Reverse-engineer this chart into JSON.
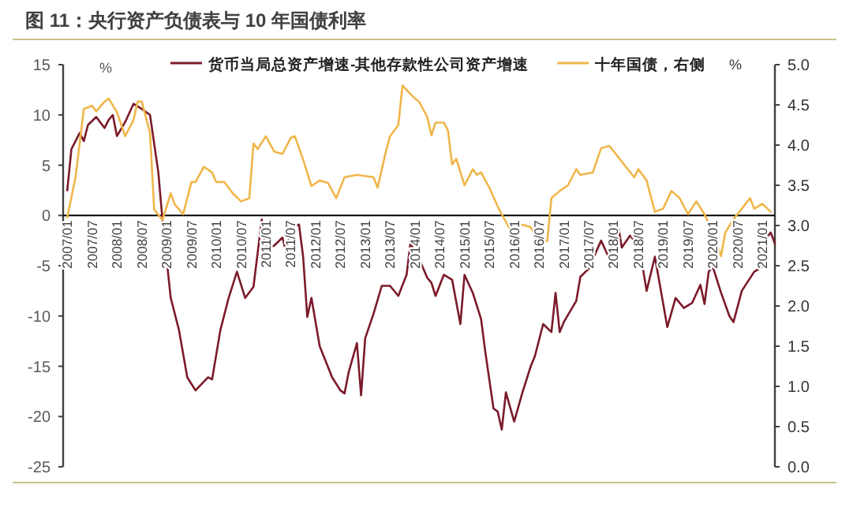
{
  "chart_data": {
    "type": "line",
    "title": "图 11：央行资产负债表与 10 年国债利率",
    "ylabel": "%",
    "y2label": "%",
    "legend": "top",
    "xlim": [
      "2006-12",
      "2021-04"
    ],
    "xticks": [
      {
        "value": "2007-01",
        "label": "2007/01"
      },
      {
        "value": "2007-07",
        "label": "2007/07"
      },
      {
        "value": "2008-01",
        "label": "2008/01"
      },
      {
        "value": "2008-07",
        "label": "2008/07"
      },
      {
        "value": "2009-01",
        "label": "2009/01"
      },
      {
        "value": "2009-07",
        "label": "2009/07"
      },
      {
        "value": "2010-01",
        "label": "2010/01"
      },
      {
        "value": "2010-07",
        "label": "2010/07"
      },
      {
        "value": "2011-01",
        "label": "2011/01"
      },
      {
        "value": "2011-07",
        "label": "2011/07"
      },
      {
        "value": "2012-01",
        "label": "2012/01"
      },
      {
        "value": "2012-07",
        "label": "2012/07"
      },
      {
        "value": "2013-01",
        "label": "2013/01"
      },
      {
        "value": "2013-07",
        "label": "2013/07"
      },
      {
        "value": "2014-01",
        "label": "2014/01"
      },
      {
        "value": "2014-07",
        "label": "2014/07"
      },
      {
        "value": "2015-01",
        "label": "2015/01"
      },
      {
        "value": "2015-07",
        "label": "2015/07"
      },
      {
        "value": "2016-01",
        "label": "2016/01"
      },
      {
        "value": "2016-07",
        "label": "2016/07"
      },
      {
        "value": "2017-01",
        "label": "2017/01"
      },
      {
        "value": "2017-07",
        "label": "2017/07"
      },
      {
        "value": "2018-01",
        "label": "2018/01"
      },
      {
        "value": "2018-07",
        "label": "2018/07"
      },
      {
        "value": "2019-01",
        "label": "2019/01"
      },
      {
        "value": "2019-07",
        "label": "2019/07"
      },
      {
        "value": "2020-01",
        "label": "2020/01"
      },
      {
        "value": "2020-07",
        "label": "2020/07"
      },
      {
        "value": "2021-01",
        "label": "2021/01"
      }
    ],
    "ylim": [
      -25,
      15
    ],
    "yticks": [
      15,
      10,
      5,
      0,
      -5,
      -10,
      -15,
      -20,
      -25
    ],
    "y2lim": [
      0,
      5
    ],
    "y2ticks": [
      {
        "value": 0,
        "label": "0.0"
      },
      0.5,
      {
        "value": 1,
        "label": "1.0"
      },
      1.5,
      {
        "value": 2,
        "label": "2.0"
      },
      2.5,
      {
        "value": 3,
        "label": "3.0"
      },
      3.5,
      {
        "value": 4,
        "label": "4.0"
      },
      4.5,
      {
        "value": 5,
        "label": "5.0"
      }
    ],
    "series": [
      {
        "name": "货币当局总资产增速-其他存款性公司资产增速",
        "color": "#7b1a2a",
        "x": [
          "2007-01",
          "2007-02",
          "2007-04",
          "2007-05",
          "2007-06",
          "2007-08",
          "2007-10",
          "2007-11",
          "2007-12",
          "2008-01",
          "2008-03",
          "2008-05",
          "2008-07",
          "2008-09",
          "2008-11",
          "2008-12",
          "2009-02",
          "2009-04",
          "2009-06",
          "2009-08",
          "2009-11",
          "2009-12",
          "2010-02",
          "2010-04",
          "2010-06",
          "2010-08",
          "2010-10",
          "2010-12",
          "2011-01",
          "2011-03",
          "2011-05",
          "2011-06",
          "2011-07",
          "2011-09",
          "2011-10",
          "2011-11",
          "2011-12",
          "2012-02",
          "2012-05",
          "2012-07",
          "2012-08",
          "2012-09",
          "2012-11",
          "2012-12",
          "2013-01",
          "2013-03",
          "2013-05",
          "2013-07",
          "2013-09",
          "2013-11",
          "2013-12",
          "2014-01",
          "2014-02",
          "2014-04",
          "2014-05",
          "2014-06",
          "2014-08",
          "2014-10",
          "2014-12",
          "2015-01",
          "2015-03",
          "2015-05",
          "2015-06",
          "2015-08",
          "2015-09",
          "2015-10",
          "2015-11",
          "2016-01",
          "2016-03",
          "2016-05",
          "2016-06",
          "2016-08",
          "2016-10",
          "2016-11",
          "2016-12",
          "2017-01",
          "2017-04",
          "2017-05",
          "2017-07",
          "2017-10",
          "2017-12",
          "2018-02",
          "2018-03",
          "2018-05",
          "2018-06",
          "2018-07",
          "2018-09",
          "2018-11",
          "2019-02",
          "2019-04",
          "2019-06",
          "2019-08",
          "2019-10",
          "2019-11",
          "2019-12",
          "2020-01",
          "2020-03",
          "2020-05",
          "2020-06",
          "2020-08",
          "2020-11",
          "2021-01",
          "2021-02",
          "2021-03",
          "2021-04"
        ],
        "values": [
          2.5,
          6.6,
          8.2,
          7.4,
          9.0,
          9.8,
          8.7,
          9.5,
          10.0,
          7.9,
          9.3,
          11.1,
          10.6,
          10.0,
          4.3,
          -0.4,
          -8.2,
          -11.4,
          -16.1,
          -17.4,
          -16.1,
          -16.3,
          -11.4,
          -8.2,
          -5.6,
          -8.2,
          -7.1,
          -0.4,
          -3.3,
          -3.0,
          -2.2,
          -3.8,
          -1.2,
          -0.9,
          -4.1,
          -10.1,
          -8.2,
          -13.0,
          -16.1,
          -17.4,
          -17.7,
          -15.6,
          -12.7,
          -17.9,
          -12.2,
          -9.8,
          -7.0,
          -7.0,
          -8.0,
          -5.9,
          -2.5,
          -4.0,
          -4.3,
          -6.2,
          -6.7,
          -8.0,
          -5.9,
          -6.4,
          -10.8,
          -5.9,
          -7.7,
          -10.3,
          -13.5,
          -19.2,
          -19.5,
          -21.3,
          -17.6,
          -20.5,
          -17.6,
          -15.0,
          -14.0,
          -10.8,
          -11.6,
          -7.7,
          -11.6,
          -10.6,
          -8.5,
          -6.1,
          -5.3,
          -2.5,
          -4.3,
          -0.7,
          -3.2,
          -2.0,
          -2.5,
          -2.5,
          -7.5,
          -4.1,
          -11.1,
          -8.2,
          -9.2,
          -8.7,
          -6.9,
          -8.8,
          -5.6,
          -5.1,
          -7.7,
          -10.0,
          -10.6,
          -7.5,
          -5.6,
          -5.1,
          -2.2,
          -1.7,
          -2.8
        ]
      },
      {
        "name": "十年国债，右侧",
        "color": "#f0b64a",
        "axis": "y2",
        "x": [
          "2007-01",
          "2007-03",
          "2007-05",
          "2007-07",
          "2007-08",
          "2007-10",
          "2007-11",
          "2008-01",
          "2008-03",
          "2008-05",
          "2008-06",
          "2008-07",
          "2008-09",
          "2008-10",
          "2008-12",
          "2009-02",
          "2009-03",
          "2009-05",
          "2009-07",
          "2009-08",
          "2009-10",
          "2009-12",
          "2010-01",
          "2010-03",
          "2010-05",
          "2010-07",
          "2010-09",
          "2010-10",
          "2010-11",
          "2011-01",
          "2011-03",
          "2011-05",
          "2011-07",
          "2011-08",
          "2011-10",
          "2011-12",
          "2012-02",
          "2012-04",
          "2012-06",
          "2012-08",
          "2012-11",
          "2013-03",
          "2013-04",
          "2013-06",
          "2013-07",
          "2013-09",
          "2013-10",
          "2014-01",
          "2014-02",
          "2014-04",
          "2014-05",
          "2014-06",
          "2014-08",
          "2014-09",
          "2014-10",
          "2014-11",
          "2015-01",
          "2015-03",
          "2015-04",
          "2015-05",
          "2015-07",
          "2015-09",
          "2015-10",
          "2015-12",
          "2016-01",
          "2016-03",
          "2016-05",
          "2016-07",
          "2016-09",
          "2016-10",
          "2016-12",
          "2017-02",
          "2017-04",
          "2017-05",
          "2017-08",
          "2017-10",
          "2017-12",
          "2018-02",
          "2018-04",
          "2018-06",
          "2018-07",
          "2018-09",
          "2018-11",
          "2019-01",
          "2019-03",
          "2019-05",
          "2019-07",
          "2019-09",
          "2019-11",
          "2020-01",
          "2020-03",
          "2020-04",
          "2020-06",
          "2020-08",
          "2020-10",
          "2020-11",
          "2021-01",
          "2021-03"
        ],
        "values": [
          3.1,
          3.6,
          4.45,
          4.49,
          4.42,
          4.54,
          4.58,
          4.41,
          4.11,
          4.31,
          4.54,
          4.54,
          4.15,
          3.2,
          3.07,
          3.4,
          3.26,
          3.14,
          3.54,
          3.54,
          3.73,
          3.66,
          3.54,
          3.54,
          3.4,
          3.3,
          3.34,
          4.02,
          3.95,
          4.11,
          3.92,
          3.89,
          4.09,
          4.11,
          3.82,
          3.49,
          3.56,
          3.53,
          3.34,
          3.6,
          3.63,
          3.6,
          3.47,
          3.92,
          4.11,
          4.25,
          4.74,
          4.58,
          4.54,
          4.35,
          4.12,
          4.28,
          4.28,
          4.18,
          3.76,
          3.83,
          3.5,
          3.7,
          3.63,
          3.66,
          3.47,
          3.24,
          3.14,
          2.95,
          2.95,
          3.01,
          2.98,
          2.78,
          2.81,
          3.34,
          3.43,
          3.5,
          3.7,
          3.63,
          3.66,
          3.96,
          3.99,
          3.86,
          3.73,
          3.6,
          3.7,
          3.56,
          3.17,
          3.21,
          3.43,
          3.34,
          3.14,
          3.3,
          3.14,
          2.91,
          2.62,
          2.91,
          3.08,
          3.21,
          3.34,
          3.21,
          3.27,
          3.17
        ]
      }
    ]
  }
}
